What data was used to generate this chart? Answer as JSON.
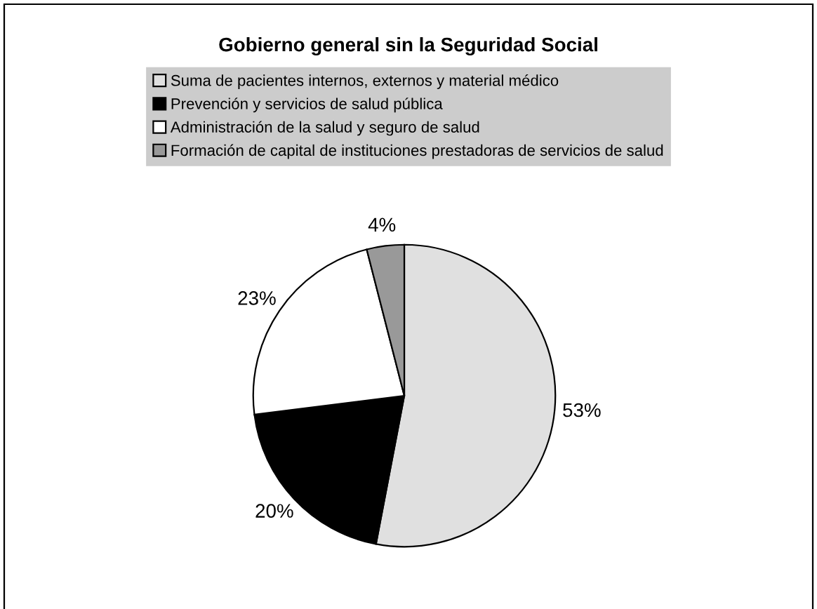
{
  "chart_data": {
    "type": "pie",
    "title": "Gobierno general sin la Seguridad Social",
    "categories": [
      "Suma de pacientes internos, externos y material médico",
      "Prevención y servicios de salud pública",
      "Administración de la salud y seguro de salud",
      "Formación de capital de instituciones prestadoras de servicios de salud"
    ],
    "values": [
      53,
      20,
      23,
      4
    ],
    "value_labels": [
      "53%",
      "20%",
      "23%",
      "4%"
    ],
    "colors": [
      "#e0e0e0",
      "#000000",
      "#ffffff",
      "#999999"
    ],
    "legend": "top"
  }
}
